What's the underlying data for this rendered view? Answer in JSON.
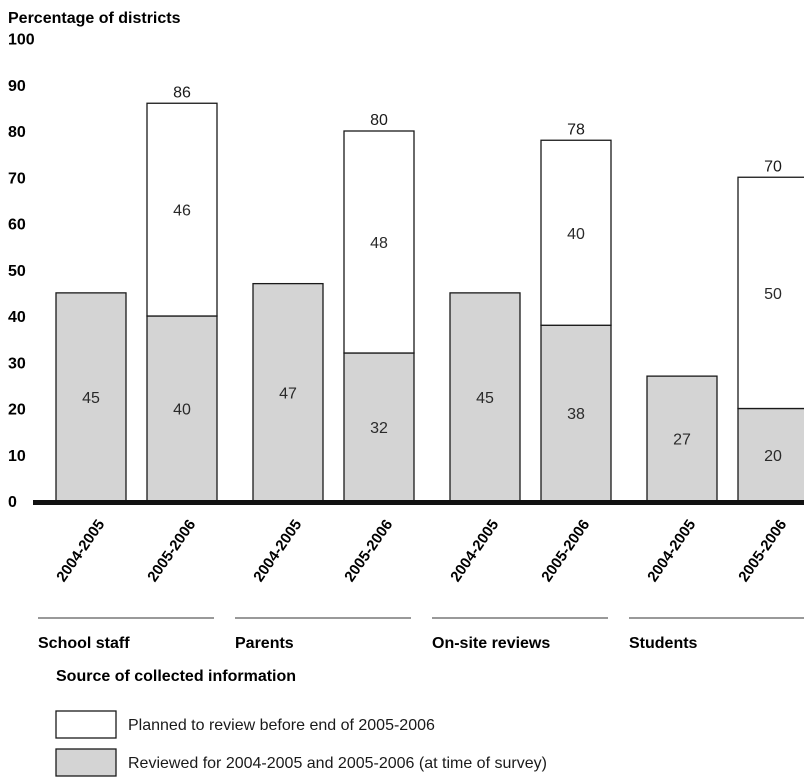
{
  "chart_data": {
    "type": "bar",
    "ylabel": "Percentage of districts",
    "xlabel": "Source of collected information",
    "ylim": [
      0,
      100
    ],
    "yticks": [
      0,
      10,
      20,
      30,
      40,
      50,
      60,
      70,
      80,
      90,
      100
    ],
    "grid": false,
    "legend_position": "bottom-left",
    "groups": [
      {
        "name": "School staff",
        "bars": [
          {
            "period": "2004-2005",
            "reviewed": 45,
            "planned": null,
            "total": null
          },
          {
            "period": "2005-2006",
            "reviewed": 40,
            "planned": 46,
            "total": 86
          }
        ]
      },
      {
        "name": "Parents",
        "bars": [
          {
            "period": "2004-2005",
            "reviewed": 47,
            "planned": null,
            "total": null
          },
          {
            "period": "2005-2006",
            "reviewed": 32,
            "planned": 48,
            "total": 80
          }
        ]
      },
      {
        "name": "On-site reviews",
        "bars": [
          {
            "period": "2004-2005",
            "reviewed": 45,
            "planned": null,
            "total": null
          },
          {
            "period": "2005-2006",
            "reviewed": 38,
            "planned": 40,
            "total": 78
          }
        ]
      },
      {
        "name": "Students",
        "bars": [
          {
            "period": "2004-2005",
            "reviewed": 27,
            "planned": null,
            "total": null
          },
          {
            "period": "2005-2006",
            "reviewed": 20,
            "planned": 50,
            "total": 70
          }
        ]
      }
    ],
    "series": [
      {
        "name": "Planned to review before end of 2005-2006",
        "color": "#ffffff"
      },
      {
        "name": "Reviewed for 2004-2005 and 2005-2006 (at time of survey)",
        "color": "#d4d4d4"
      }
    ]
  }
}
